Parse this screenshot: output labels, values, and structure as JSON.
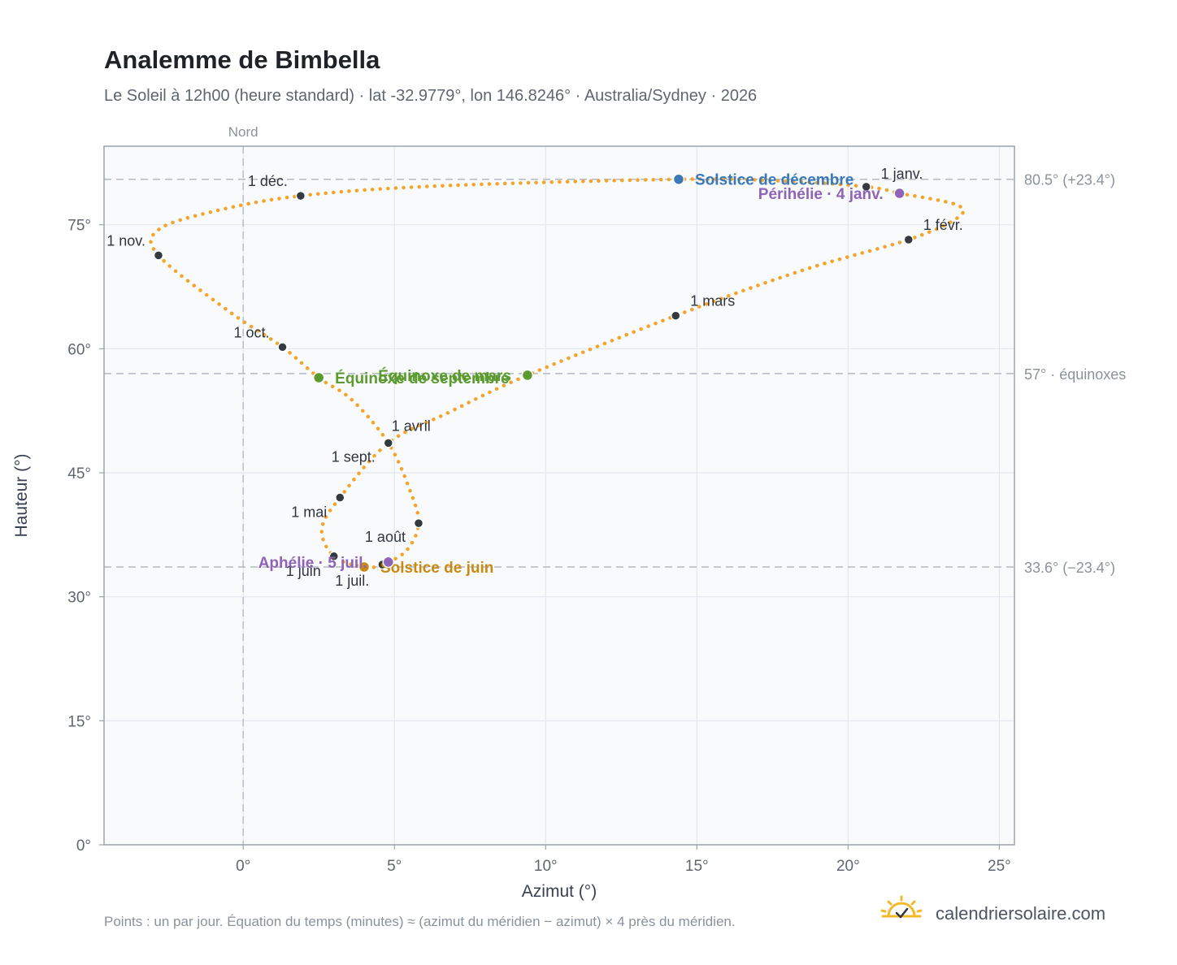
{
  "header": {
    "title": "Analemme de Bimbella",
    "subtitle": "Le Soleil à 12h00 (heure standard) · lat -32.9779°, lon 146.8246° · Australia/Sydney · 2026"
  },
  "footer": {
    "note": "Points : un par jour. Équation du temps (minutes) ≈ (azimut du méridien − azimut) × 4 près du méridien.",
    "brand": "calendriersolaire.com"
  },
  "colors": {
    "curve": "#f2a52a",
    "month_marker": "#343a40",
    "equinox": "#5a9a2e",
    "december_solstice": "#3a78b8",
    "june_solstice": "#c98a12",
    "perihelion_aphelion": "#8f64b8",
    "plot_background": "#f8fafc",
    "grid": "#e3e8ee",
    "frame": "#9aa4b0"
  },
  "chart_data": {
    "type": "scatter",
    "title": "Analemme de Bimbella",
    "xlabel": "Azimut (°)",
    "ylabel": "Hauteur (°)",
    "xlim": [
      -4.6,
      25.5
    ],
    "ylim": [
      0,
      84.5
    ],
    "x_ticks": [
      {
        "value": 0,
        "label": "0°"
      },
      {
        "value": 5,
        "label": "5°"
      },
      {
        "value": 10,
        "label": "10°"
      },
      {
        "value": 15,
        "label": "15°"
      },
      {
        "value": 20,
        "label": "20°"
      },
      {
        "value": 25,
        "label": "25°"
      }
    ],
    "y_ticks": [
      {
        "value": 0,
        "label": "0°"
      },
      {
        "value": 15,
        "label": "15°"
      },
      {
        "value": 30,
        "label": "30°"
      },
      {
        "value": 45,
        "label": "45°"
      },
      {
        "value": 60,
        "label": "60°"
      },
      {
        "value": 75,
        "label": "75°"
      }
    ],
    "grid": true,
    "vertical_reference": {
      "x": 0,
      "label": "Nord"
    },
    "reference_lines": [
      {
        "y": 80.5,
        "label": "80.5° (+23.4°)"
      },
      {
        "y": 57,
        "label": "57° · équinoxes"
      },
      {
        "y": 33.6,
        "label": "33.6° (−23.4°)"
      }
    ],
    "curve_path": [
      {
        "x": 21.7,
        "y": 78.8
      },
      {
        "x": 23.6,
        "y": 77.4
      },
      {
        "x": 23.6,
        "y": 75.8
      },
      {
        "x": 22.0,
        "y": 73.2
      },
      {
        "x": 18.5,
        "y": 69.5
      },
      {
        "x": 14.3,
        "y": 64.0
      },
      {
        "x": 9.4,
        "y": 56.8
      },
      {
        "x": 6.8,
        "y": 52.3
      },
      {
        "x": 4.8,
        "y": 48.6
      },
      {
        "x": 3.2,
        "y": 42.0
      },
      {
        "x": 2.6,
        "y": 38.2
      },
      {
        "x": 3.0,
        "y": 34.9
      },
      {
        "x": 4.0,
        "y": 33.6
      },
      {
        "x": 4.6,
        "y": 33.9
      },
      {
        "x": 5.4,
        "y": 35.6
      },
      {
        "x": 5.8,
        "y": 38.9
      },
      {
        "x": 5.5,
        "y": 43.0
      },
      {
        "x": 4.8,
        "y": 48.6
      },
      {
        "x": 3.6,
        "y": 53.8
      },
      {
        "x": 2.5,
        "y": 56.5
      },
      {
        "x": 1.3,
        "y": 60.2
      },
      {
        "x": -0.5,
        "y": 64.6
      },
      {
        "x": -2.8,
        "y": 71.3
      },
      {
        "x": -2.8,
        "y": 74.4
      },
      {
        "x": -1.0,
        "y": 76.6
      },
      {
        "x": 1.9,
        "y": 78.5
      },
      {
        "x": 6.5,
        "y": 79.7
      },
      {
        "x": 14.4,
        "y": 80.5
      },
      {
        "x": 17.8,
        "y": 80.3
      },
      {
        "x": 20.6,
        "y": 79.6
      },
      {
        "x": 21.7,
        "y": 78.8
      }
    ],
    "month_markers": [
      {
        "label": "1 janv.",
        "x": 20.6,
        "y": 79.6,
        "anchor": "start",
        "dx": 18,
        "dy": -10
      },
      {
        "label": "1 févr.",
        "x": 22.0,
        "y": 73.2,
        "anchor": "start",
        "dx": 18,
        "dy": -12
      },
      {
        "label": "1 mars",
        "x": 14.3,
        "y": 64.0,
        "anchor": "start",
        "dx": 18,
        "dy": -12
      },
      {
        "label": "1 avril",
        "x": 4.8,
        "y": 48.6,
        "anchor": "start",
        "dx": 4,
        "dy": -15
      },
      {
        "label": "1 mai",
        "x": 3.2,
        "y": 42.0,
        "anchor": "end",
        "dx": -16,
        "dy": 24
      },
      {
        "label": "1 juin",
        "x": 3.0,
        "y": 34.9,
        "anchor": "end",
        "dx": -16,
        "dy": 24
      },
      {
        "label": "1 juil.",
        "x": 4.6,
        "y": 33.9,
        "anchor": "end",
        "dx": -16,
        "dy": 26
      },
      {
        "label": "1 août",
        "x": 5.8,
        "y": 38.9,
        "anchor": "end",
        "dx": -16,
        "dy": 23
      },
      {
        "label": "1 sept.",
        "x": 4.8,
        "y": 48.6,
        "anchor": "end",
        "dx": -16,
        "dy": 23
      },
      {
        "label": "1 oct.",
        "x": 1.3,
        "y": 60.2,
        "anchor": "end",
        "dx": -16,
        "dy": -12
      },
      {
        "label": "1 nov.",
        "x": -2.8,
        "y": 71.3,
        "anchor": "end",
        "dx": -16,
        "dy": -12
      },
      {
        "label": "1 déc.",
        "x": 1.9,
        "y": 78.5,
        "anchor": "end",
        "dx": -16,
        "dy": -12
      }
    ],
    "events": [
      {
        "label": "Équinoxe de mars",
        "x": 9.4,
        "y": 56.8,
        "color": "#5a9a2e",
        "anchor": "end",
        "dx": -20,
        "dy": 7
      },
      {
        "label": "Équinoxe de septembre",
        "x": 2.5,
        "y": 56.5,
        "color": "#5a9a2e",
        "anchor": "start",
        "dx": 20,
        "dy": 7
      },
      {
        "label": "Solstice de décembre",
        "x": 14.4,
        "y": 80.5,
        "color": "#3a78b8",
        "anchor": "start",
        "dx": 20,
        "dy": 7
      },
      {
        "label": "Solstice de juin",
        "x": 4.0,
        "y": 33.6,
        "color": "#c98a12",
        "anchor": "start",
        "dx": 20,
        "dy": 7
      },
      {
        "label": "Périhélie · 4 janv.",
        "x": 21.7,
        "y": 78.8,
        "color": "#8f64b8",
        "anchor": "end",
        "dx": -20,
        "dy": 7
      },
      {
        "label": "Aphélie · 5 juil.",
        "x": 4.8,
        "y": 34.2,
        "color": "#8f64b8",
        "anchor": "end",
        "dx": -26,
        "dy": 7
      }
    ]
  }
}
